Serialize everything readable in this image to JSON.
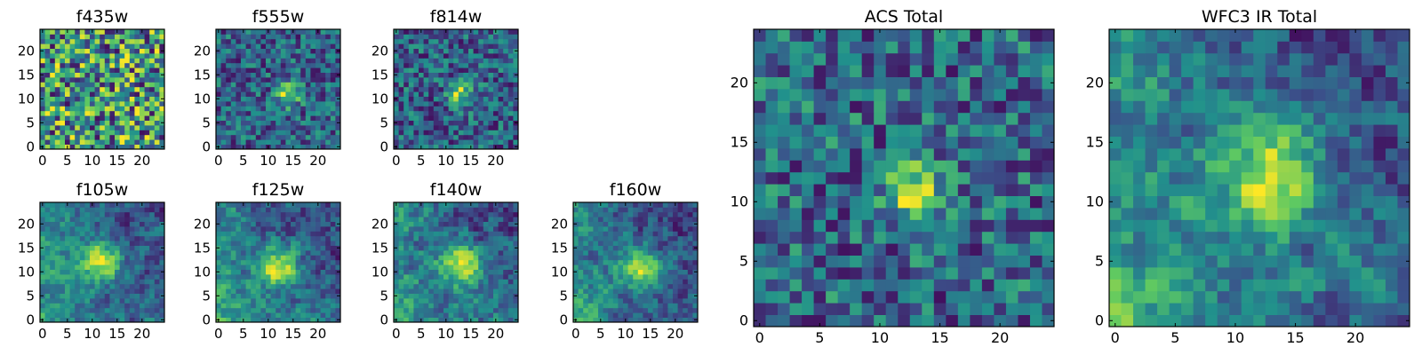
{
  "chart_data": [
    {
      "id": "f435w",
      "type": "heatmap",
      "title": "f435w",
      "grid": [
        25,
        25
      ],
      "xlim": [
        0,
        24
      ],
      "ylim": [
        0,
        24
      ],
      "xticks": [
        0,
        5,
        10,
        15,
        20
      ],
      "yticks": [
        0,
        5,
        10,
        15,
        20
      ],
      "peak": null,
      "profile": "noise"
    },
    {
      "id": "f555w",
      "type": "heatmap",
      "title": "f555w",
      "grid": [
        25,
        25
      ],
      "xlim": [
        0,
        24
      ],
      "ylim": [
        0,
        24
      ],
      "xticks": [
        0,
        5,
        10,
        15,
        20
      ],
      "yticks": [
        0,
        5,
        10,
        15,
        20
      ],
      "peak": [
        14,
        11
      ],
      "profile": "noise"
    },
    {
      "id": "f814w",
      "type": "heatmap",
      "title": "f814w",
      "grid": [
        25,
        25
      ],
      "xlim": [
        0,
        24
      ],
      "ylim": [
        0,
        24
      ],
      "xticks": [
        0,
        5,
        10,
        15,
        20
      ],
      "yticks": [
        0,
        5,
        10,
        15,
        20
      ],
      "peak": [
        13,
        11
      ],
      "profile": "noise"
    },
    {
      "id": "f105w",
      "type": "heatmap",
      "title": "f105w",
      "grid": [
        25,
        25
      ],
      "xlim": [
        0,
        24
      ],
      "ylim": [
        0,
        24
      ],
      "xticks": [
        0,
        5,
        10,
        15,
        20
      ],
      "yticks": [
        0,
        5,
        10,
        15,
        20
      ],
      "peak": [
        12,
        12
      ],
      "profile": "smooth"
    },
    {
      "id": "f125w",
      "type": "heatmap",
      "title": "f125w",
      "grid": [
        25,
        25
      ],
      "xlim": [
        0,
        24
      ],
      "ylim": [
        0,
        24
      ],
      "xticks": [
        0,
        5,
        10,
        15,
        20
      ],
      "yticks": [
        0,
        5,
        10,
        15,
        20
      ],
      "peak": [
        12,
        11
      ],
      "profile": "smooth"
    },
    {
      "id": "f140w",
      "type": "heatmap",
      "title": "f140w",
      "grid": [
        25,
        25
      ],
      "xlim": [
        0,
        24
      ],
      "ylim": [
        0,
        24
      ],
      "xticks": [
        0,
        5,
        10,
        15,
        20
      ],
      "yticks": [
        0,
        5,
        10,
        15,
        20
      ],
      "peak": [
        13,
        11
      ],
      "profile": "smooth"
    },
    {
      "id": "f160w",
      "type": "heatmap",
      "title": "f160w",
      "grid": [
        25,
        25
      ],
      "xlim": [
        0,
        24
      ],
      "ylim": [
        0,
        24
      ],
      "xticks": [
        0,
        5,
        10,
        15,
        20
      ],
      "yticks": [
        0,
        5,
        10,
        15,
        20
      ],
      "peak": [
        13,
        11
      ],
      "profile": "smooth"
    },
    {
      "id": "acs_total",
      "type": "heatmap",
      "title": "ACS Total",
      "grid": [
        25,
        25
      ],
      "xlim": [
        0,
        24
      ],
      "ylim": [
        0,
        24
      ],
      "xticks": [
        0,
        5,
        10,
        15,
        20
      ],
      "yticks": [
        0,
        5,
        10,
        15,
        20
      ],
      "peak": [
        13,
        11
      ],
      "profile": "noise"
    },
    {
      "id": "wfc3_total",
      "type": "heatmap",
      "title": "WFC3 IR Total",
      "grid": [
        25,
        25
      ],
      "xlim": [
        0,
        24
      ],
      "ylim": [
        0,
        24
      ],
      "xticks": [
        0,
        5,
        10,
        15,
        20
      ],
      "yticks": [
        0,
        5,
        10,
        15,
        20
      ],
      "peak": [
        13,
        12
      ],
      "profile": "smooth"
    }
  ],
  "colormap": {
    "name": "viridis",
    "stops": [
      "#440154",
      "#3b528b",
      "#21918c",
      "#5ec962",
      "#fde725"
    ]
  }
}
